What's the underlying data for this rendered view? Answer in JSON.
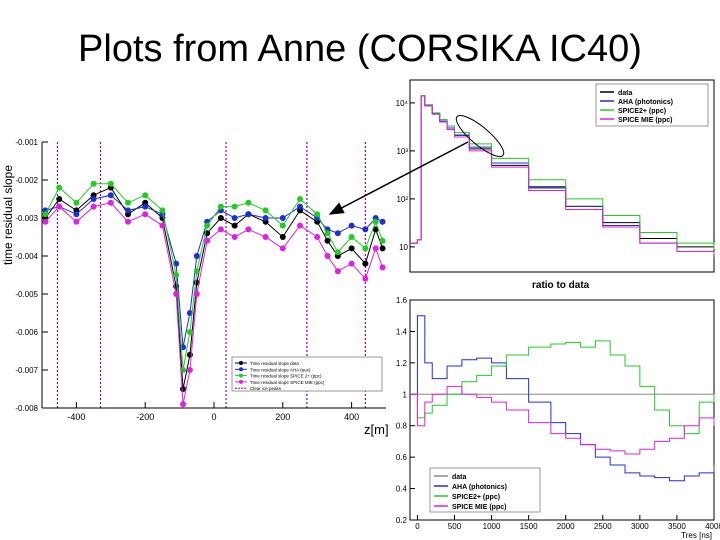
{
  "slide": {
    "title": "Plots from Anne (CORSIKA IC40)"
  },
  "colors": {
    "data": "#000000",
    "aha": "#1f2fd6",
    "spice2": "#22cc22",
    "mie": "#e020e0",
    "dust": "#9900aa"
  },
  "chart_data": [
    {
      "type": "scatter",
      "ylabel": "time residual slope",
      "xlabel": "z[m]",
      "xlim": [
        -500,
        500
      ],
      "ylim": [
        -0.008,
        -0.001
      ],
      "y_tick_labels": [
        "-0.001",
        "-0.002",
        "-0.003",
        "-0.004",
        "-0.005",
        "-0.006",
        "-0.007",
        "-0.008"
      ],
      "x_tick_labels": [
        "-400",
        "-200",
        "0",
        "200",
        "400"
      ],
      "legend": [
        "Time residual slope data",
        "Time residual slope AHA (aux)",
        "Time residual slope SPICE 2+ (ppc)",
        "Time residual slope SPICE MIE (ppc)",
        "Clear ice peaks"
      ],
      "dust_peak_lines_z": [
        -455,
        -330,
        35,
        270,
        440
      ],
      "series": [
        {
          "name": "Time residual slope data",
          "x": [
            -490,
            -450,
            -400,
            -350,
            -300,
            -250,
            -200,
            -150,
            -110,
            -90,
            -70,
            -50,
            -20,
            20,
            60,
            100,
            150,
            200,
            250,
            300,
            330,
            360,
            400,
            440,
            470,
            490
          ],
          "y": [
            -0.003,
            -0.0025,
            -0.0028,
            -0.0024,
            -0.0022,
            -0.0029,
            -0.0026,
            -0.003,
            -0.0048,
            -0.0075,
            -0.0066,
            -0.0047,
            -0.0034,
            -0.003,
            -0.0032,
            -0.0029,
            -0.0031,
            -0.0035,
            -0.0028,
            -0.0031,
            -0.0036,
            -0.004,
            -0.0038,
            -0.0042,
            -0.0033,
            -0.0038
          ]
        },
        {
          "name": "Time residual slope AHA (aux)",
          "x": [
            -490,
            -450,
            -400,
            -350,
            -300,
            -250,
            -200,
            -150,
            -110,
            -90,
            -70,
            -50,
            -20,
            20,
            60,
            100,
            150,
            200,
            250,
            300,
            330,
            360,
            400,
            440,
            470,
            490
          ],
          "y": [
            -0.0028,
            -0.0027,
            -0.0029,
            -0.0025,
            -0.0024,
            -0.0028,
            -0.0027,
            -0.0029,
            -0.0042,
            -0.0064,
            -0.0055,
            -0.004,
            -0.0031,
            -0.0028,
            -0.003,
            -0.0029,
            -0.003,
            -0.003,
            -0.0027,
            -0.003,
            -0.0033,
            -0.0034,
            -0.0032,
            -0.0033,
            -0.003,
            -0.0031
          ]
        },
        {
          "name": "Time residual slope SPICE 2+ (ppc)",
          "x": [
            -490,
            -450,
            -400,
            -350,
            -300,
            -250,
            -200,
            -150,
            -110,
            -90,
            -70,
            -50,
            -20,
            20,
            60,
            100,
            150,
            200,
            250,
            300,
            330,
            360,
            400,
            440,
            470,
            490
          ],
          "y": [
            -0.0029,
            -0.0022,
            -0.0026,
            -0.0021,
            -0.0021,
            -0.0026,
            -0.0024,
            -0.0028,
            -0.0045,
            -0.007,
            -0.006,
            -0.0044,
            -0.0032,
            -0.0027,
            -0.0027,
            -0.0026,
            -0.0028,
            -0.0032,
            -0.0025,
            -0.0029,
            -0.0034,
            -0.0039,
            -0.0035,
            -0.0038,
            -0.0031,
            -0.0036
          ]
        },
        {
          "name": "Time residual slope SPICE MIE (ppc)",
          "x": [
            -490,
            -450,
            -400,
            -350,
            -300,
            -250,
            -200,
            -150,
            -110,
            -90,
            -70,
            -50,
            -20,
            20,
            60,
            100,
            150,
            200,
            250,
            300,
            330,
            360,
            400,
            440,
            470,
            490
          ],
          "y": [
            -0.0031,
            -0.0027,
            -0.0031,
            -0.0027,
            -0.0026,
            -0.0031,
            -0.0029,
            -0.0032,
            -0.005,
            -0.0079,
            -0.007,
            -0.005,
            -0.0036,
            -0.0033,
            -0.0035,
            -0.0033,
            -0.0035,
            -0.0038,
            -0.0032,
            -0.0035,
            -0.004,
            -0.0044,
            -0.0042,
            -0.0046,
            -0.0038,
            -0.0043
          ]
        }
      ]
    },
    {
      "type": "line",
      "ylog": true,
      "y_tick_labels": [
        "10",
        "10²",
        "10³",
        "10⁴"
      ],
      "legend": [
        "data",
        "AHA (photonics)",
        "SPICE2+ (ppc)",
        "SPICE MIE (ppc)"
      ],
      "xlim": [
        -100,
        4000
      ],
      "ylim": [
        3,
        30000
      ],
      "x": [
        -100,
        0,
        50,
        100,
        200,
        300,
        400,
        500,
        700,
        1000,
        1500,
        2000,
        2500,
        3000,
        3500,
        4000
      ],
      "series": [
        {
          "name": "data",
          "values": [
            12,
            14,
            14000,
            9000,
            6000,
            4200,
            3000,
            2100,
            1100,
            500,
            170,
            70,
            32,
            15,
            10,
            8
          ]
        },
        {
          "name": "AHA (photonics)",
          "values": [
            12,
            14,
            14000,
            9000,
            6000,
            4200,
            3000,
            2150,
            1200,
            560,
            180,
            70,
            28,
            12,
            8,
            6
          ]
        },
        {
          "name": "SPICE2+ (ppc)",
          "values": [
            12,
            14,
            14000,
            8800,
            6200,
            4500,
            3300,
            2400,
            1400,
            700,
            250,
            100,
            45,
            20,
            12,
            9
          ]
        },
        {
          "name": "SPICE MIE (ppc)",
          "values": [
            12,
            14,
            14000,
            8600,
            5800,
            4000,
            2800,
            1950,
            1000,
            460,
            150,
            60,
            26,
            12,
            8,
            7
          ]
        }
      ],
      "annotation": "ratio to data"
    },
    {
      "type": "line",
      "xlabel": "Tres [ns]",
      "xlim": [
        -100,
        4000
      ],
      "ylim": [
        0.2,
        1.6
      ],
      "x_tick_labels": [
        "0",
        "500",
        "1000",
        "1500",
        "2000",
        "2500",
        "3000",
        "3500",
        "4000"
      ],
      "y_tick_labels": [
        "0.2",
        "0.4",
        "0.6",
        "0.8",
        "1",
        "1.2",
        "1.4",
        "1.6"
      ],
      "legend": [
        "data",
        "AHA (photonics)",
        "SPICE2+ (ppc)",
        "SPICE MIE (ppc)"
      ],
      "x": [
        -100,
        0,
        100,
        200,
        400,
        600,
        800,
        1000,
        1200,
        1500,
        1800,
        2000,
        2200,
        2400,
        2600,
        2800,
        3000,
        3200,
        3400,
        3600,
        3800,
        4000
      ],
      "series": [
        {
          "name": "data",
          "values": [
            1,
            1,
            1,
            1,
            1,
            1,
            1,
            1,
            1,
            1,
            1,
            1,
            1,
            1,
            1,
            1,
            1,
            1,
            1,
            1,
            1,
            1
          ]
        },
        {
          "name": "AHA (photonics)",
          "values": [
            1.0,
            1.5,
            1.2,
            1.1,
            1.18,
            1.22,
            1.23,
            1.2,
            1.1,
            0.95,
            0.82,
            0.75,
            0.68,
            0.6,
            0.55,
            0.5,
            0.48,
            0.47,
            0.45,
            0.48,
            0.5,
            0.55
          ]
        },
        {
          "name": "SPICE2+ (ppc)",
          "values": [
            1.0,
            0.85,
            0.88,
            0.93,
            1.0,
            1.08,
            1.12,
            1.18,
            1.25,
            1.3,
            1.32,
            1.33,
            1.3,
            1.34,
            1.25,
            1.18,
            1.05,
            0.9,
            0.8,
            0.75,
            0.95,
            1.0
          ]
        },
        {
          "name": "SPICE MIE (ppc)",
          "values": [
            1.0,
            0.8,
            0.95,
            1.0,
            1.05,
            1.0,
            0.98,
            0.95,
            0.9,
            0.82,
            0.75,
            0.72,
            0.68,
            0.65,
            0.64,
            0.62,
            0.65,
            0.7,
            0.72,
            0.8,
            0.85,
            0.8
          ]
        }
      ]
    }
  ]
}
